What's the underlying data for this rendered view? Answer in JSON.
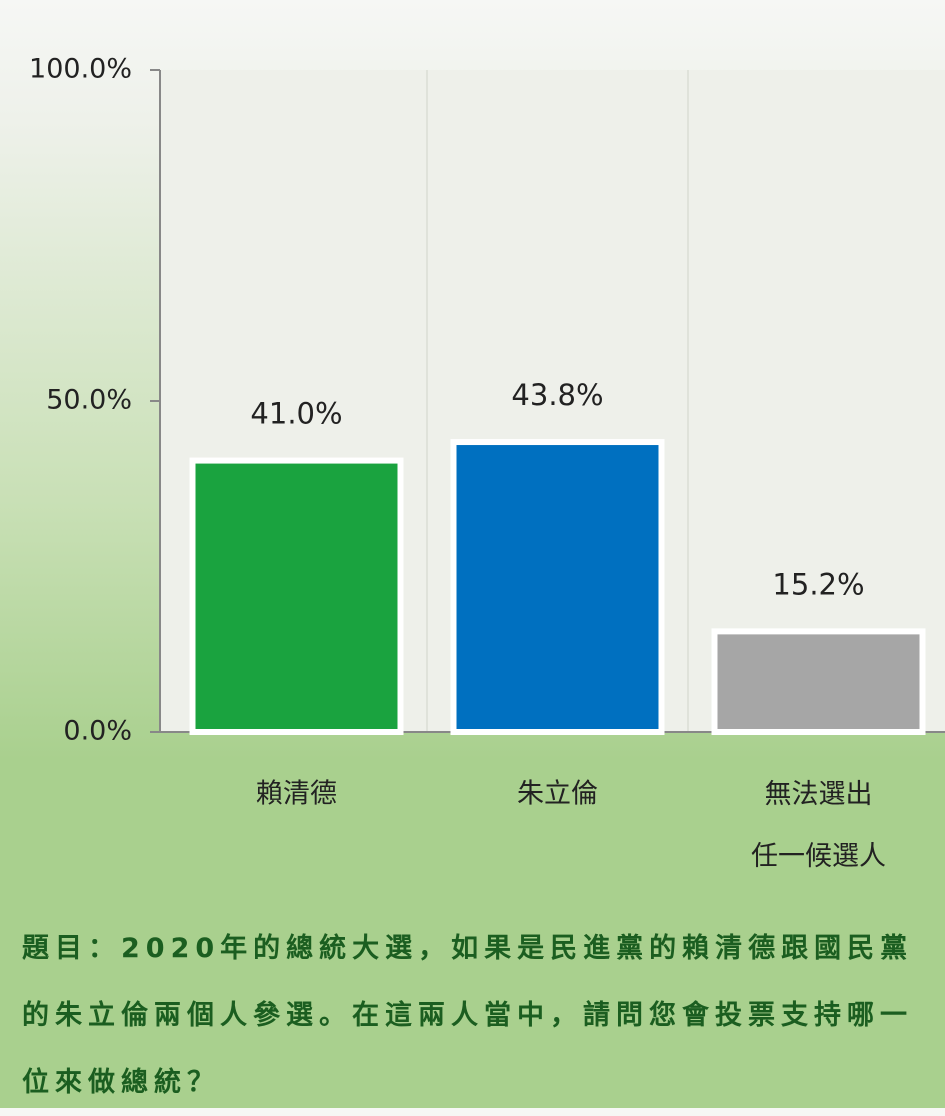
{
  "chart_data": {
    "type": "bar",
    "categories": [
      "賴清德",
      "朱立倫",
      "無法選出\n任一候選人"
    ],
    "values": [
      41.0,
      43.8,
      15.2
    ],
    "value_labels": [
      "41.0%",
      "43.8%",
      "15.2%"
    ],
    "colors": [
      "#1aa33f",
      "#0070c0",
      "#a6a6a6"
    ],
    "ylim": [
      0,
      100
    ],
    "yticks": [
      {
        "value": 0,
        "label": "0.0%"
      },
      {
        "value": 50,
        "label": "50.0%"
      },
      {
        "value": 100,
        "label": "100.0%"
      }
    ],
    "grid": false,
    "question": "題目：2020年的總統大選，如果是民進黨的賴清德跟國民黨的朱立倫兩個人參選。在這兩人當中，請問您會投票支持哪一位來做總統？"
  }
}
